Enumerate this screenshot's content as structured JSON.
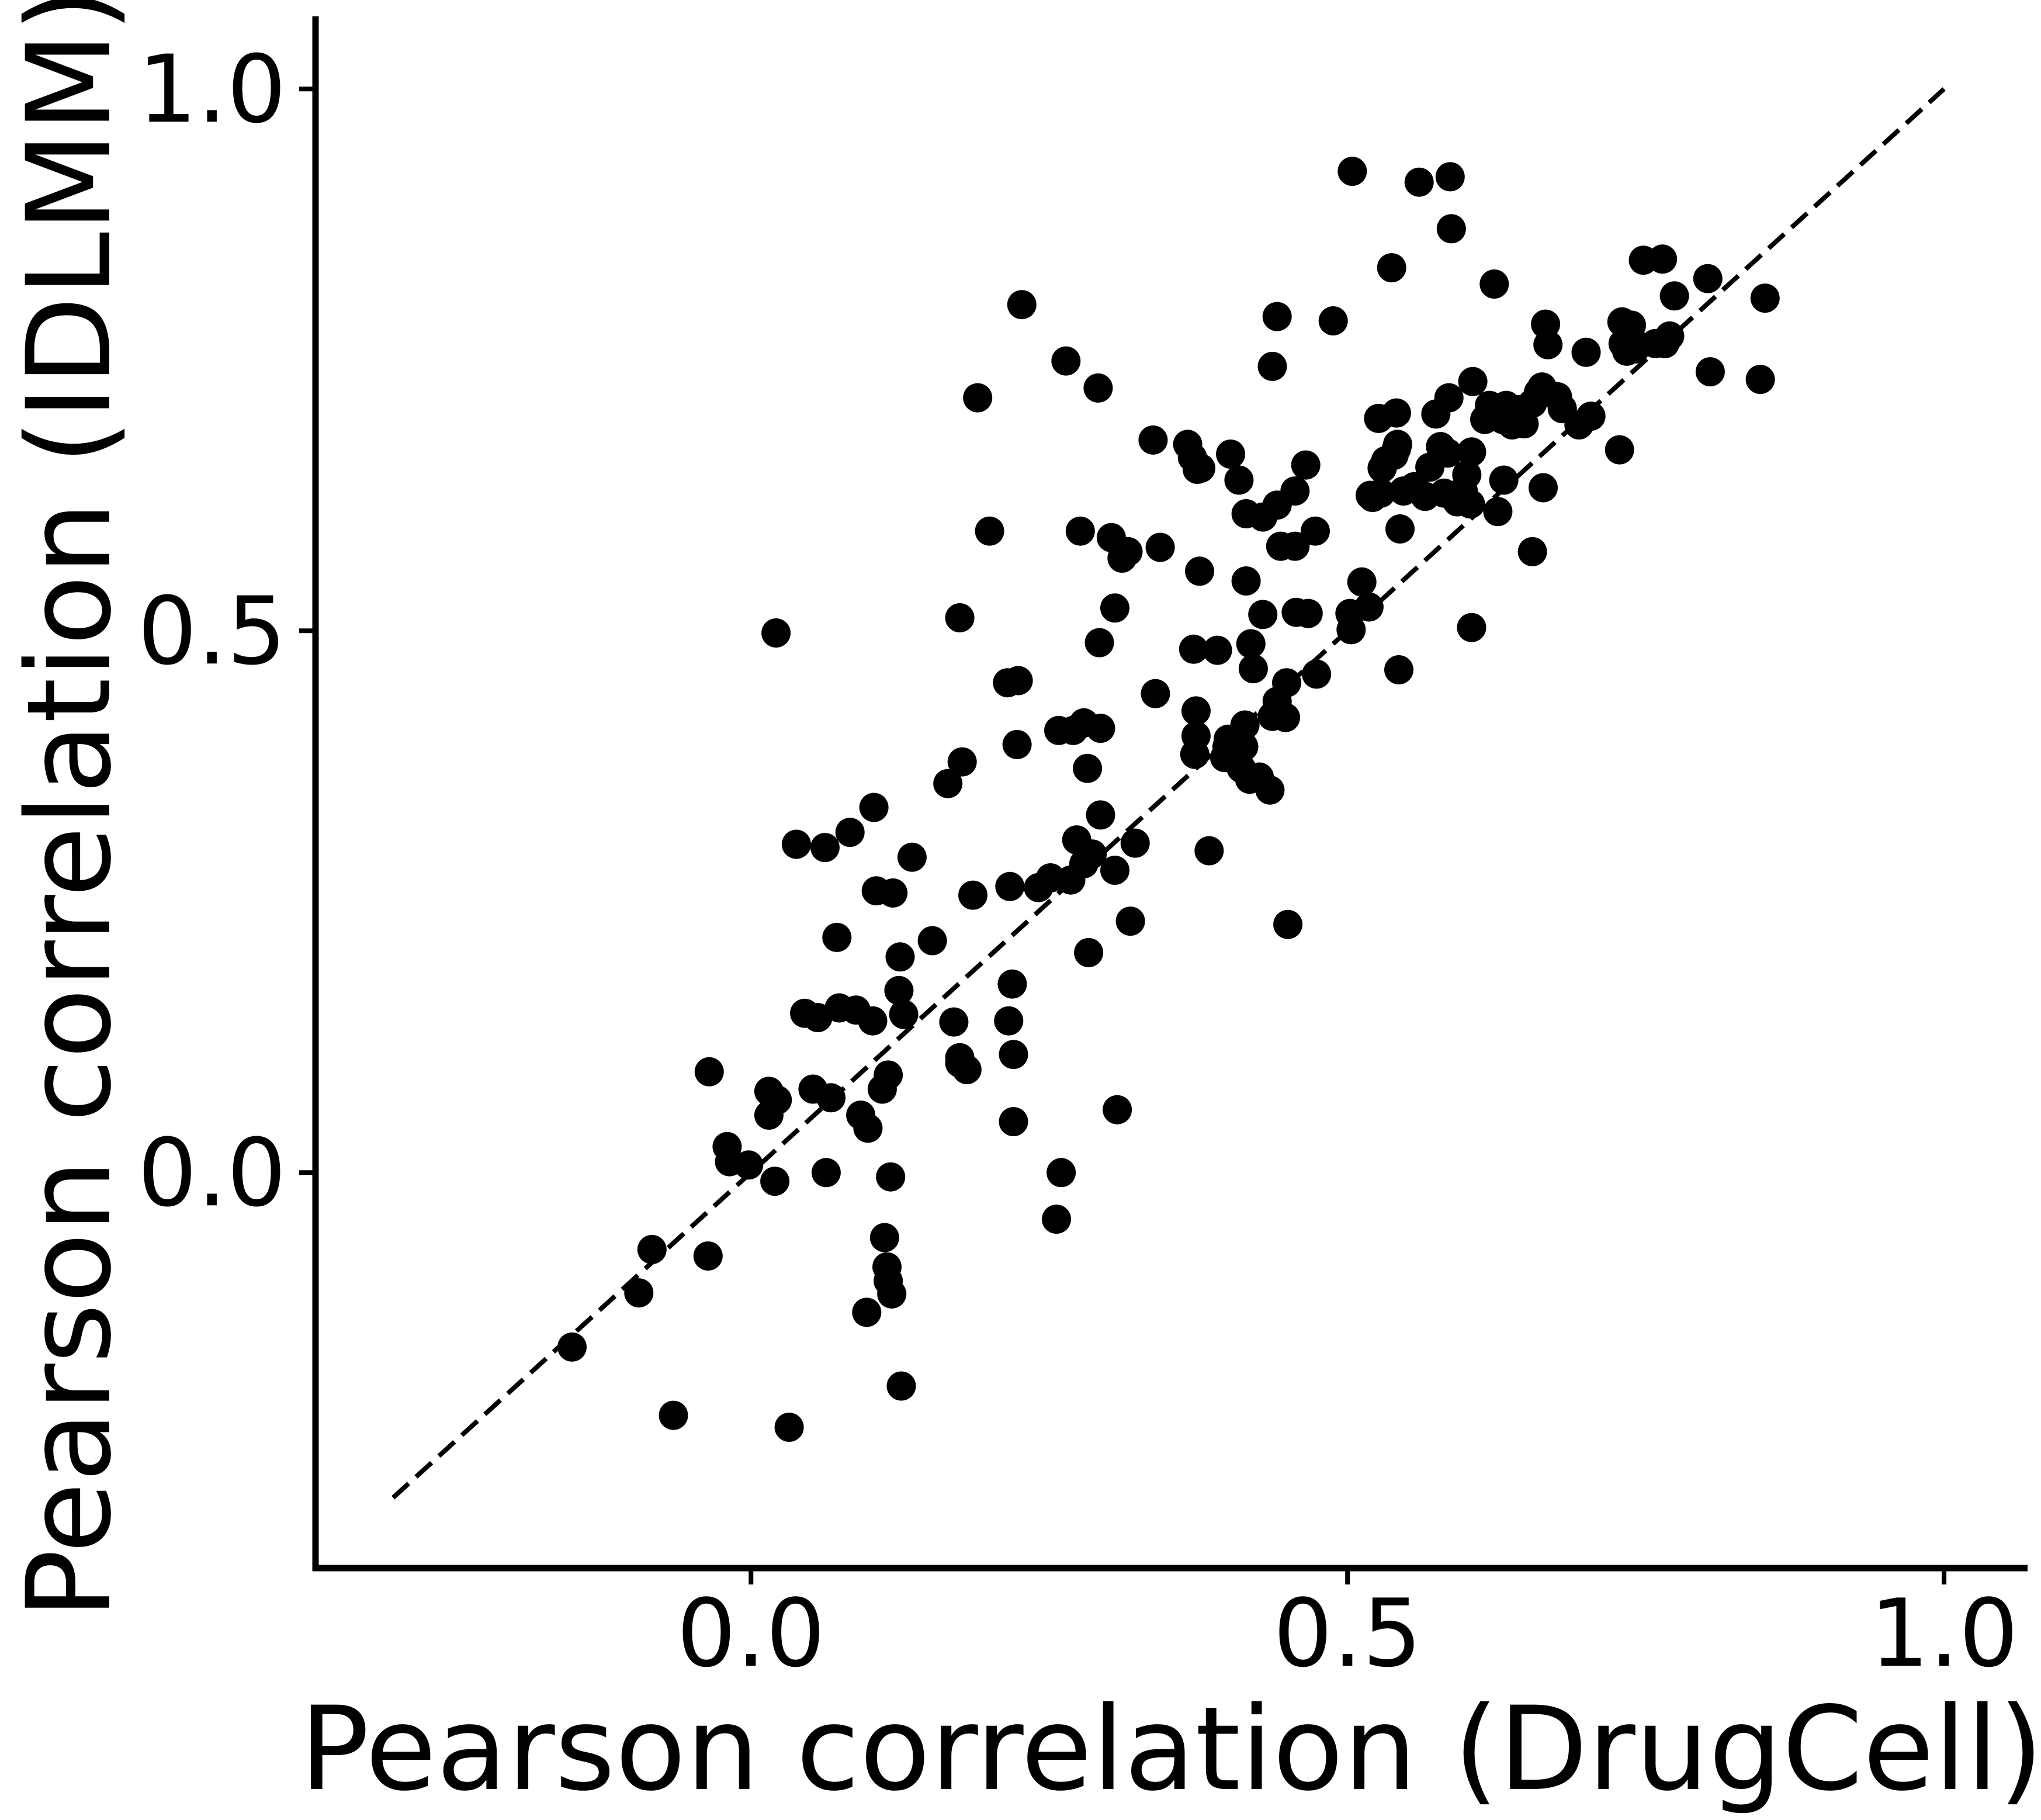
{
  "chart_data": {
    "type": "scatter",
    "xlabel": "Pearson correlation (DrugCell)",
    "ylabel": "Pearson correlation (IDLMM)",
    "xlim": [
      -0.365,
      1.07
    ],
    "ylim": [
      -0.365,
      1.067
    ],
    "xticks": [
      {
        "value": 0.0,
        "label": "0.0"
      },
      {
        "value": 0.5,
        "label": "0.5"
      },
      {
        "value": 1.0,
        "label": "1.0"
      }
    ],
    "yticks": [
      {
        "value": 0.0,
        "label": "0.0"
      },
      {
        "value": 0.5,
        "label": "0.5"
      },
      {
        "value": 1.0,
        "label": "1.0"
      }
    ],
    "grid": false,
    "legend": false,
    "reference_line": {
      "style": "dashed",
      "from": [
        -0.3,
        -0.3
      ],
      "to": [
        1.0,
        1.0
      ]
    },
    "marker_color": "#000000",
    "series": [
      {
        "points": [
          [
            -0.15,
            -0.161
          ],
          [
            -0.065,
            -0.224
          ],
          [
            -0.094,
            -0.111
          ],
          [
            -0.083,
            -0.071
          ],
          [
            -0.036,
            -0.077
          ],
          [
            -0.035,
            0.093
          ],
          [
            -0.02,
            0.024
          ],
          [
            -0.018,
            0.01
          ],
          [
            -0.002,
            0.007
          ],
          [
            0.015,
            0.075
          ],
          [
            0.015,
            0.053
          ],
          [
            0.02,
            -0.008
          ],
          [
            0.022,
            0.067
          ],
          [
            0.021,
            0.498
          ],
          [
            0.032,
            -0.235
          ],
          [
            0.038,
            0.303
          ],
          [
            0.045,
            0.147
          ],
          [
            0.052,
            0.077
          ],
          [
            0.056,
            0.143
          ],
          [
            0.062,
            0.3
          ],
          [
            0.063,
            0.0
          ],
          [
            0.067,
            0.069
          ],
          [
            0.072,
            0.217
          ],
          [
            0.074,
            0.152
          ],
          [
            0.083,
            0.314
          ],
          [
            0.088,
            0.15
          ],
          [
            0.092,
            0.053
          ],
          [
            0.097,
            -0.129
          ],
          [
            0.098,
            0.041
          ],
          [
            0.102,
            0.14
          ],
          [
            0.103,
            0.337
          ],
          [
            0.105,
            0.26
          ],
          [
            0.11,
            0.077
          ],
          [
            0.112,
            -0.06
          ],
          [
            0.115,
            0.09
          ],
          [
            0.117,
            -0.004
          ],
          [
            0.114,
            -0.087
          ],
          [
            0.115,
            -0.1
          ],
          [
            0.119,
            0.258
          ],
          [
            0.118,
            -0.112
          ],
          [
            0.124,
            0.168
          ],
          [
            0.125,
            0.199
          ],
          [
            0.126,
            -0.197
          ],
          [
            0.128,
            0.146
          ],
          [
            0.135,
            0.291
          ],
          [
            0.152,
            0.214
          ],
          [
            0.165,
            0.359
          ],
          [
            0.17,
            0.139
          ],
          [
            0.175,
            0.106
          ],
          [
            0.175,
            0.512
          ],
          [
            0.177,
            0.379
          ],
          [
            0.175,
            0.101
          ],
          [
            0.181,
            0.095
          ],
          [
            0.186,
            0.256
          ],
          [
            0.19,
            0.715
          ],
          [
            0.2,
            0.592
          ],
          [
            0.215,
            0.452
          ],
          [
            0.216,
            0.14
          ],
          [
            0.217,
            0.264
          ],
          [
            0.219,
            0.174
          ],
          [
            0.22,
            0.109
          ],
          [
            0.22,
            0.047
          ],
          [
            0.224,
            0.454
          ],
          [
            0.223,
            0.395
          ],
          [
            0.227,
            0.801
          ],
          [
            0.241,
            0.263
          ],
          [
            0.251,
            0.272
          ],
          [
            0.258,
            0.408
          ],
          [
            0.256,
            -0.043
          ],
          [
            0.26,
            0.0
          ],
          [
            0.264,
            0.749
          ],
          [
            0.268,
            0.27
          ],
          [
            0.27,
            0.408
          ],
          [
            0.273,
            0.307
          ],
          [
            0.276,
            0.592
          ],
          [
            0.279,
            0.415
          ],
          [
            0.279,
            0.285
          ],
          [
            0.282,
            0.373
          ],
          [
            0.283,
            0.203
          ],
          [
            0.286,
            0.294
          ],
          [
            0.291,
            0.724
          ],
          [
            0.292,
            0.489
          ],
          [
            0.293,
            0.41
          ],
          [
            0.293,
            0.33
          ],
          [
            0.302,
            0.586
          ],
          [
            0.305,
            0.521
          ],
          [
            0.305,
            0.279
          ],
          [
            0.307,
            0.058
          ],
          [
            0.311,
            0.567
          ],
          [
            0.316,
            0.573
          ],
          [
            0.318,
            0.232
          ],
          [
            0.322,
            0.304
          ],
          [
            0.337,
            0.676
          ],
          [
            0.339,
            0.442
          ],
          [
            0.343,
            0.577
          ],
          [
            0.366,
            0.672
          ],
          [
            0.37,
            0.66
          ],
          [
            0.374,
            0.649
          ],
          [
            0.371,
            0.483
          ],
          [
            0.373,
            0.426
          ],
          [
            0.373,
            0.403
          ],
          [
            0.372,
            0.386
          ],
          [
            0.376,
            0.555
          ],
          [
            0.377,
            0.65
          ],
          [
            0.384,
            0.297
          ],
          [
            0.391,
            0.482
          ],
          [
            0.399,
            0.393
          ],
          [
            0.397,
            0.383
          ],
          [
            0.4,
            0.4
          ],
          [
            0.402,
            0.663
          ],
          [
            0.405,
            0.381
          ],
          [
            0.409,
            0.639
          ],
          [
            0.41,
            0.4
          ],
          [
            0.411,
            0.373
          ],
          [
            0.413,
            0.393
          ],
          [
            0.414,
            0.413
          ],
          [
            0.415,
            0.608
          ],
          [
            0.415,
            0.546
          ],
          [
            0.418,
            0.363
          ],
          [
            0.419,
            0.488
          ],
          [
            0.421,
            0.465
          ],
          [
            0.426,
            0.365
          ],
          [
            0.429,
            0.605
          ],
          [
            0.429,
            0.515
          ],
          [
            0.435,
            0.353
          ],
          [
            0.437,
            0.421
          ],
          [
            0.437,
            0.744
          ],
          [
            0.441,
            0.435
          ],
          [
            0.441,
            0.79
          ],
          [
            0.441,
            0.616
          ],
          [
            0.444,
            0.578
          ],
          [
            0.448,
            0.42
          ],
          [
            0.449,
            0.452
          ],
          [
            0.45,
            0.229
          ],
          [
            0.456,
            0.629
          ],
          [
            0.456,
            0.578
          ],
          [
            0.457,
            0.517
          ],
          [
            0.465,
            0.653
          ],
          [
            0.467,
            0.516
          ],
          [
            0.473,
            0.592
          ],
          [
            0.474,
            0.46
          ],
          [
            0.488,
            0.786
          ],
          [
            0.502,
            0.516
          ],
          [
            0.503,
            0.501
          ],
          [
            0.504,
            0.924
          ],
          [
            0.512,
            0.545
          ],
          [
            0.518,
            0.522
          ],
          [
            0.519,
            0.625
          ],
          [
            0.521,
            0.623
          ],
          [
            0.526,
            0.696
          ],
          [
            0.528,
            0.627
          ],
          [
            0.529,
            0.65
          ],
          [
            0.537,
            0.835
          ],
          [
            0.532,
            0.657
          ],
          [
            0.539,
            0.662
          ],
          [
            0.541,
            0.701
          ],
          [
            0.541,
            0.668
          ],
          [
            0.542,
            0.672
          ],
          [
            0.543,
            0.464
          ],
          [
            0.544,
            0.594
          ],
          [
            0.547,
            0.629
          ],
          [
            0.556,
            0.633
          ],
          [
            0.56,
            0.914
          ],
          [
            0.565,
            0.624
          ],
          [
            0.569,
            0.651
          ],
          [
            0.574,
            0.7
          ],
          [
            0.578,
            0.67
          ],
          [
            0.581,
            0.627
          ],
          [
            0.584,
            0.664
          ],
          [
            0.585,
            0.715
          ],
          [
            0.586,
            0.919
          ],
          [
            0.587,
            0.871
          ],
          [
            0.592,
            0.619
          ],
          [
            0.597,
            0.629
          ],
          [
            0.6,
            0.644
          ],
          [
            0.603,
            0.617
          ],
          [
            0.604,
            0.665
          ],
          [
            0.604,
            0.503
          ],
          [
            0.605,
            0.73
          ],
          [
            0.615,
            0.695
          ],
          [
            0.619,
            0.708
          ],
          [
            0.623,
            0.82
          ],
          [
            0.626,
            0.61
          ],
          [
            0.63,
            0.695
          ],
          [
            0.631,
            0.639
          ],
          [
            0.633,
            0.708
          ],
          [
            0.638,
            0.69
          ],
          [
            0.643,
            0.704
          ],
          [
            0.648,
            0.691
          ],
          [
            0.655,
            0.71
          ],
          [
            0.655,
            0.573
          ],
          [
            0.66,
            0.72
          ],
          [
            0.663,
            0.725
          ],
          [
            0.664,
            0.632
          ],
          [
            0.666,
            0.783
          ],
          [
            0.668,
            0.764
          ],
          [
            0.676,
            0.716
          ],
          [
            0.68,
            0.705
          ],
          [
            0.694,
            0.69
          ],
          [
            0.7,
            0.757
          ],
          [
            0.704,
            0.698
          ],
          [
            0.728,
            0.667
          ],
          [
            0.73,
            0.785
          ],
          [
            0.731,
            0.765
          ],
          [
            0.734,
            0.758
          ],
          [
            0.738,
            0.782
          ],
          [
            0.741,
            0.765
          ],
          [
            0.741,
            0.76
          ],
          [
            0.748,
            0.842
          ],
          [
            0.758,
            0.765
          ],
          [
            0.764,
            0.843
          ],
          [
            0.766,
            0.765
          ],
          [
            0.77,
            0.772
          ],
          [
            0.774,
            0.809
          ],
          [
            0.802,
            0.825
          ],
          [
            0.804,
            0.739
          ],
          [
            0.846,
            0.732
          ],
          [
            0.85,
            0.807
          ]
        ]
      }
    ]
  }
}
